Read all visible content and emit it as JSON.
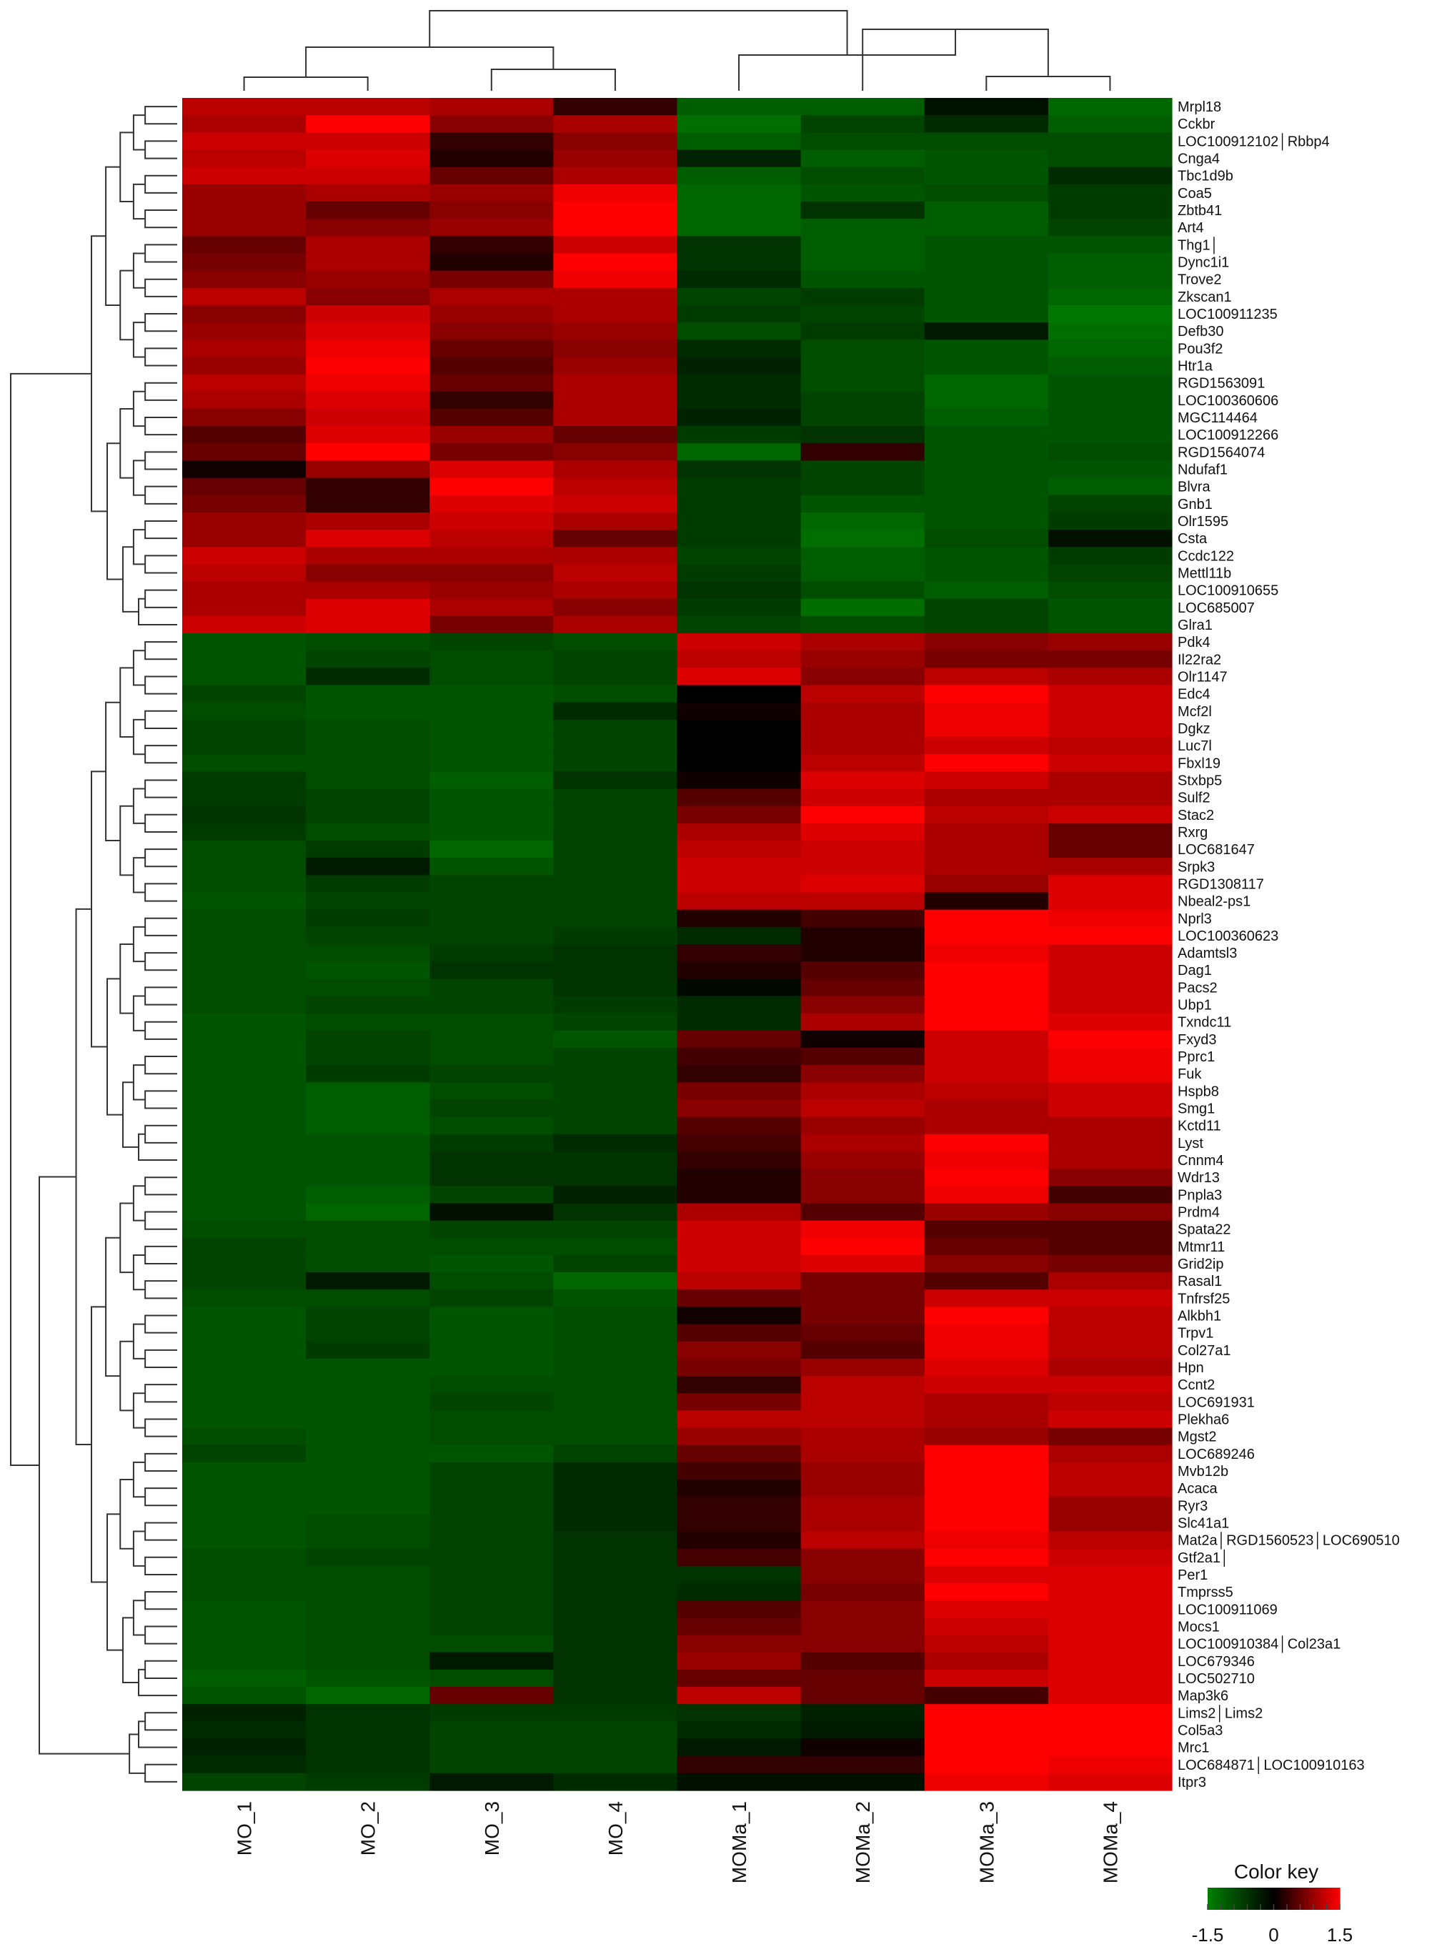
{
  "chart_data": {
    "type": "heatmap",
    "title": "",
    "columns": [
      "MO_1",
      "MO_2",
      "MO_3",
      "MO_4",
      "MOMa_1",
      "MOMa_2",
      "MOMa_3",
      "MOMa_4"
    ],
    "rows": [
      "Mrpl18",
      "Cckbr",
      "LOC100912102│Rbbp4",
      "Cnga4",
      "Tbc1d9b",
      "Coa5",
      "Zbtb41",
      "Art4",
      "Thg1│",
      "Dync1i1",
      "Trove2",
      "Zkscan1",
      "LOC100911235",
      "Defb30",
      "Pou3f2",
      "Htr1a",
      "RGD1563091",
      "LOC100360606",
      "MGC114464",
      "LOC100912266",
      "RGD1564074",
      "Ndufaf1",
      "Blvra",
      "Gnb1",
      "Olr1595",
      "Csta",
      "Ccdc122",
      "Mettl11b",
      "LOC100910655",
      "LOC685007",
      "Glra1",
      "Pdk4",
      "Il22ra2",
      "Olr1147",
      "Edc4",
      "Mcf2l",
      "Dgkz",
      "Luc7l",
      "Fbxl19",
      "Stxbp5",
      "Sulf2",
      "Stac2",
      "Rxrg",
      "LOC681647",
      "Srpk3",
      "RGD1308117",
      "Nbeal2-ps1",
      "Nprl3",
      "LOC100360623",
      "Adamtsl3",
      "Dag1",
      "Pacs2",
      "Ubp1",
      "Txndc11",
      "Fxyd3",
      "Pprc1",
      "Fuk",
      "Hspb8",
      "Smg1",
      "Kctd11",
      "Lyst",
      "Cnnm4",
      "Wdr13",
      "Pnpla3",
      "Prdm4",
      "Spata22",
      "Mtmr11",
      "Grid2ip",
      "Rasal1",
      "Tnfrsf25",
      "Alkbh1",
      "Trpv1",
      "Col27a1",
      "Hpn",
      "Ccnt2",
      "LOC691931",
      "Plekha6",
      "Mgst2",
      "LOC689246",
      "Mvb12b",
      "Acaca",
      "Ryr3",
      "Slc41a1",
      "Mat2a│RGD1560523│LOC690510",
      "Gtf2a1│",
      "Per1",
      "Tmprss5",
      "LOC100911069",
      "Mocs1",
      "LOC100910384│Col23a1",
      "LOC679346",
      "LOC502710",
      "Map3k6",
      "Lims2│Lims2",
      "Col5a3",
      "Mrc1",
      "LOC684871│LOC100910163",
      "Itpr3"
    ],
    "values": [
      [
        1.1,
        1.1,
        1.0,
        0.3,
        -1.1,
        -1.1,
        -0.2,
        -1.2
      ],
      [
        1.0,
        1.5,
        0.8,
        1.0,
        -1.3,
        -0.8,
        -0.5,
        -1.1
      ],
      [
        1.2,
        1.2,
        0.3,
        0.8,
        -1.1,
        -0.9,
        -0.9,
        -0.9
      ],
      [
        1.1,
        1.3,
        0.2,
        0.9,
        -0.4,
        -1.1,
        -1.0,
        -0.9
      ],
      [
        1.2,
        1.2,
        0.6,
        1.0,
        -1.1,
        -0.9,
        -1.0,
        -0.5
      ],
      [
        0.9,
        1.0,
        0.9,
        1.4,
        -1.2,
        -1.0,
        -0.9,
        -0.7
      ],
      [
        0.9,
        0.6,
        0.8,
        1.5,
        -1.2,
        -0.6,
        -1.1,
        -0.7
      ],
      [
        0.9,
        0.8,
        0.9,
        1.5,
        -1.2,
        -1.1,
        -1.1,
        -0.8
      ],
      [
        0.6,
        1.0,
        0.3,
        1.2,
        -0.6,
        -1.1,
        -1.0,
        -1.0
      ],
      [
        0.7,
        1.0,
        0.2,
        1.5,
        -0.6,
        -1.1,
        -1.0,
        -1.1
      ],
      [
        0.8,
        0.9,
        0.7,
        1.4,
        -0.5,
        -1.0,
        -1.0,
        -1.1
      ],
      [
        1.1,
        0.8,
        1.0,
        1.0,
        -0.8,
        -0.7,
        -1.0,
        -1.2
      ],
      [
        0.8,
        1.2,
        0.9,
        1.0,
        -0.7,
        -0.8,
        -1.0,
        -1.4
      ],
      [
        0.9,
        1.3,
        0.8,
        0.9,
        -0.9,
        -0.7,
        -0.3,
        -1.3
      ],
      [
        1.0,
        1.4,
        0.6,
        0.8,
        -0.5,
        -0.9,
        -1.0,
        -1.2
      ],
      [
        0.9,
        1.5,
        0.5,
        0.9,
        -0.4,
        -0.9,
        -1.0,
        -1.1
      ],
      [
        1.1,
        1.4,
        0.6,
        1.0,
        -0.5,
        -0.9,
        -1.2,
        -1.0
      ],
      [
        1.0,
        1.3,
        0.3,
        1.0,
        -0.5,
        -0.8,
        -1.2,
        -1.0
      ],
      [
        0.8,
        1.2,
        0.5,
        1.0,
        -0.4,
        -0.8,
        -1.1,
        -1.0
      ],
      [
        0.5,
        1.3,
        0.9,
        0.6,
        -0.7,
        -0.6,
        -1.0,
        -1.0
      ],
      [
        0.6,
        1.6,
        0.7,
        0.8,
        -1.2,
        0.3,
        -1.0,
        -0.9
      ],
      [
        0.1,
        0.9,
        1.3,
        1.0,
        -0.6,
        -0.8,
        -1.0,
        -1.0
      ],
      [
        0.6,
        0.3,
        1.6,
        1.1,
        -0.7,
        -0.8,
        -1.0,
        -1.1
      ],
      [
        0.7,
        0.3,
        1.3,
        1.2,
        -0.7,
        -1.0,
        -1.0,
        -0.8
      ],
      [
        0.9,
        1.0,
        1.2,
        1.0,
        -0.7,
        -1.2,
        -1.0,
        -0.7
      ],
      [
        0.9,
        1.3,
        1.1,
        0.6,
        -0.7,
        -1.3,
        -0.9,
        -0.2
      ],
      [
        1.2,
        1.0,
        1.0,
        1.0,
        -0.8,
        -1.1,
        -1.0,
        -0.7
      ],
      [
        1.1,
        0.8,
        0.8,
        1.1,
        -0.7,
        -1.1,
        -1.0,
        -0.8
      ],
      [
        1.0,
        1.0,
        0.9,
        1.0,
        -0.6,
        -0.9,
        -1.1,
        -0.9
      ],
      [
        1.0,
        1.3,
        1.0,
        0.8,
        -0.7,
        -1.3,
        -0.8,
        -1.0
      ],
      [
        1.2,
        1.3,
        0.7,
        1.0,
        -0.8,
        -0.9,
        -0.8,
        -1.0
      ],
      [
        -1.0,
        -0.9,
        -0.8,
        -0.9,
        1.2,
        1.0,
        0.8,
        0.9
      ],
      [
        -1.0,
        -0.8,
        -0.9,
        -0.8,
        1.1,
        0.9,
        0.7,
        0.7
      ],
      [
        -1.0,
        -0.5,
        -0.9,
        -0.8,
        1.3,
        0.8,
        1.1,
        1.0
      ],
      [
        -0.8,
        -1.0,
        -1.0,
        -0.9,
        0.0,
        1.1,
        1.5,
        1.2
      ],
      [
        -0.9,
        -1.0,
        -1.0,
        -0.5,
        0.1,
        1.0,
        1.4,
        1.2
      ],
      [
        -0.8,
        -0.9,
        -1.0,
        -0.8,
        0.0,
        1.0,
        1.4,
        1.2
      ],
      [
        -0.8,
        -0.9,
        -1.0,
        -0.8,
        0.0,
        1.0,
        1.2,
        1.1
      ],
      [
        -0.9,
        -0.9,
        -1.0,
        -0.8,
        0.0,
        1.1,
        1.5,
        1.2
      ],
      [
        -0.7,
        -0.9,
        -1.1,
        -0.6,
        0.1,
        1.3,
        1.2,
        1.0
      ],
      [
        -0.7,
        -0.8,
        -1.0,
        -0.8,
        0.5,
        1.2,
        1.0,
        1.0
      ],
      [
        -0.6,
        -0.8,
        -1.0,
        -0.8,
        0.7,
        1.5,
        1.1,
        1.2
      ],
      [
        -0.7,
        -0.9,
        -1.0,
        -0.8,
        1.0,
        1.3,
        1.0,
        0.6
      ],
      [
        -0.9,
        -0.7,
        -1.2,
        -0.8,
        1.1,
        1.2,
        1.0,
        0.6
      ],
      [
        -0.9,
        -0.3,
        -1.0,
        -0.8,
        1.2,
        1.2,
        1.0,
        1.0
      ],
      [
        -0.9,
        -0.7,
        -0.8,
        -0.8,
        1.2,
        1.3,
        0.9,
        1.3
      ],
      [
        -1.0,
        -0.8,
        -0.8,
        -0.8,
        1.1,
        1.1,
        0.2,
        1.3
      ],
      [
        -0.9,
        -0.7,
        -0.8,
        -0.8,
        0.2,
        0.4,
        1.5,
        1.4
      ],
      [
        -0.9,
        -0.8,
        -0.8,
        -0.7,
        -0.5,
        0.2,
        1.6,
        1.5
      ],
      [
        -0.9,
        -0.9,
        -0.7,
        -0.6,
        0.3,
        0.2,
        1.4,
        1.2
      ],
      [
        -0.9,
        -1.0,
        -0.6,
        -0.6,
        0.2,
        0.5,
        1.5,
        1.2
      ],
      [
        -0.9,
        -0.9,
        -0.8,
        -0.6,
        -0.1,
        0.6,
        1.5,
        1.2
      ],
      [
        -0.9,
        -0.8,
        -0.8,
        -0.7,
        -0.5,
        0.8,
        1.6,
        1.2
      ],
      [
        -1.0,
        -0.9,
        -0.9,
        -0.8,
        -0.5,
        1.0,
        1.6,
        1.3
      ],
      [
        -1.0,
        -0.8,
        -0.9,
        -1.0,
        0.6,
        0.1,
        1.2,
        1.5
      ],
      [
        -1.0,
        -0.8,
        -0.9,
        -0.8,
        0.4,
        0.5,
        1.2,
        1.4
      ],
      [
        -1.0,
        -0.7,
        -0.8,
        -0.8,
        0.3,
        0.8,
        1.2,
        1.4
      ],
      [
        -1.0,
        -1.1,
        -0.9,
        -0.8,
        0.7,
        1.0,
        1.1,
        1.2
      ],
      [
        -1.0,
        -1.1,
        -0.8,
        -0.8,
        0.8,
        1.1,
        1.0,
        1.2
      ],
      [
        -1.0,
        -1.1,
        -0.9,
        -0.8,
        0.5,
        0.9,
        1.0,
        1.0
      ],
      [
        -1.0,
        -1.0,
        -0.7,
        -0.5,
        0.4,
        1.0,
        1.5,
        1.0
      ],
      [
        -1.0,
        -1.0,
        -0.6,
        -0.6,
        0.3,
        0.9,
        1.4,
        1.0
      ],
      [
        -1.0,
        -1.0,
        -0.6,
        -0.6,
        0.2,
        0.8,
        1.6,
        0.8
      ],
      [
        -1.0,
        -1.1,
        -0.8,
        -0.4,
        0.2,
        0.8,
        1.4,
        0.4
      ],
      [
        -1.0,
        -1.2,
        -0.2,
        -0.6,
        1.0,
        0.5,
        0.9,
        0.8
      ],
      [
        -0.9,
        -0.9,
        -0.8,
        -0.8,
        1.2,
        1.4,
        0.5,
        0.5
      ],
      [
        -0.8,
        -0.9,
        -0.9,
        -0.9,
        1.2,
        1.5,
        0.6,
        0.5
      ],
      [
        -0.8,
        -0.9,
        -1.0,
        -0.8,
        1.2,
        1.3,
        0.8,
        0.7
      ],
      [
        -0.8,
        -0.3,
        -0.9,
        -1.2,
        1.1,
        0.7,
        0.5,
        1.0
      ],
      [
        -0.9,
        -0.9,
        -0.8,
        -1.0,
        0.6,
        0.7,
        1.2,
        1.2
      ],
      [
        -1.0,
        -0.8,
        -1.0,
        -0.9,
        0.1,
        0.7,
        1.5,
        1.1
      ],
      [
        -1.0,
        -0.8,
        -1.0,
        -0.9,
        0.5,
        0.6,
        1.4,
        1.1
      ],
      [
        -1.0,
        -0.7,
        -1.0,
        -0.9,
        0.8,
        0.5,
        1.4,
        1.1
      ],
      [
        -1.0,
        -1.0,
        -1.0,
        -0.9,
        0.7,
        0.9,
        1.3,
        1.0
      ],
      [
        -1.0,
        -1.0,
        -0.9,
        -0.9,
        0.3,
        1.1,
        1.2,
        1.2
      ],
      [
        -1.0,
        -1.0,
        -0.8,
        -0.9,
        0.7,
        1.1,
        1.0,
        1.1
      ],
      [
        -1.0,
        -1.0,
        -0.9,
        -0.9,
        1.1,
        1.1,
        1.0,
        1.2
      ],
      [
        -0.9,
        -1.0,
        -0.9,
        -0.9,
        0.9,
        1.0,
        0.9,
        0.7
      ],
      [
        -0.8,
        -1.0,
        -1.0,
        -0.8,
        0.6,
        1.0,
        1.5,
        1.0
      ],
      [
        -1.0,
        -1.0,
        -0.8,
        -0.5,
        0.4,
        0.9,
        1.5,
        1.1
      ],
      [
        -1.0,
        -1.0,
        -0.8,
        -0.5,
        0.2,
        0.9,
        1.5,
        1.1
      ],
      [
        -1.0,
        -1.0,
        -0.8,
        -0.5,
        0.3,
        1.0,
        1.5,
        0.9
      ],
      [
        -1.0,
        -0.9,
        -0.8,
        -0.5,
        0.3,
        1.0,
        1.5,
        0.9
      ],
      [
        -1.0,
        -0.9,
        -0.8,
        -0.6,
        0.2,
        1.1,
        1.4,
        1.1
      ],
      [
        -0.9,
        -0.8,
        -0.8,
        -0.6,
        0.4,
        0.8,
        1.5,
        1.2
      ],
      [
        -0.9,
        -0.9,
        -0.8,
        -0.6,
        -0.6,
        0.8,
        1.3,
        1.3
      ],
      [
        -0.9,
        -0.9,
        -0.8,
        -0.6,
        -0.5,
        0.7,
        1.6,
        1.3
      ],
      [
        -1.0,
        -0.9,
        -0.8,
        -0.6,
        0.5,
        0.8,
        1.3,
        1.3
      ],
      [
        -1.0,
        -0.9,
        -0.8,
        -0.6,
        0.6,
        0.8,
        1.2,
        1.3
      ],
      [
        -1.0,
        -0.9,
        -0.9,
        -0.6,
        0.8,
        0.8,
        1.1,
        1.3
      ],
      [
        -1.0,
        -0.9,
        -0.3,
        -0.6,
        0.9,
        0.5,
        1.0,
        1.3
      ],
      [
        -1.1,
        -1.0,
        -0.9,
        -0.6,
        0.6,
        0.6,
        1.2,
        1.3
      ],
      [
        -1.0,
        -1.2,
        0.6,
        -0.6,
        1.1,
        0.6,
        0.4,
        1.3
      ],
      [
        -0.4,
        -0.6,
        -0.7,
        -0.7,
        -0.6,
        -0.4,
        1.5,
        1.5
      ],
      [
        -0.5,
        -0.6,
        -0.8,
        -0.8,
        -0.5,
        -0.3,
        1.5,
        1.6
      ],
      [
        -0.4,
        -0.6,
        -0.8,
        -0.8,
        -0.3,
        0.1,
        1.5,
        1.5
      ],
      [
        -0.5,
        -0.6,
        -0.8,
        -0.8,
        0.3,
        0.3,
        1.5,
        1.4
      ],
      [
        -0.8,
        -0.7,
        -0.3,
        -0.5,
        -0.2,
        -0.2,
        1.4,
        1.3
      ]
    ],
    "color_key": {
      "title": "Color key",
      "min": -1.5,
      "max": 1.5,
      "ticks": [
        "-1.5",
        "0",
        "1.5"
      ],
      "low_color": "#008000",
      "mid_color": "#000000",
      "high_color": "#ff0000"
    }
  }
}
